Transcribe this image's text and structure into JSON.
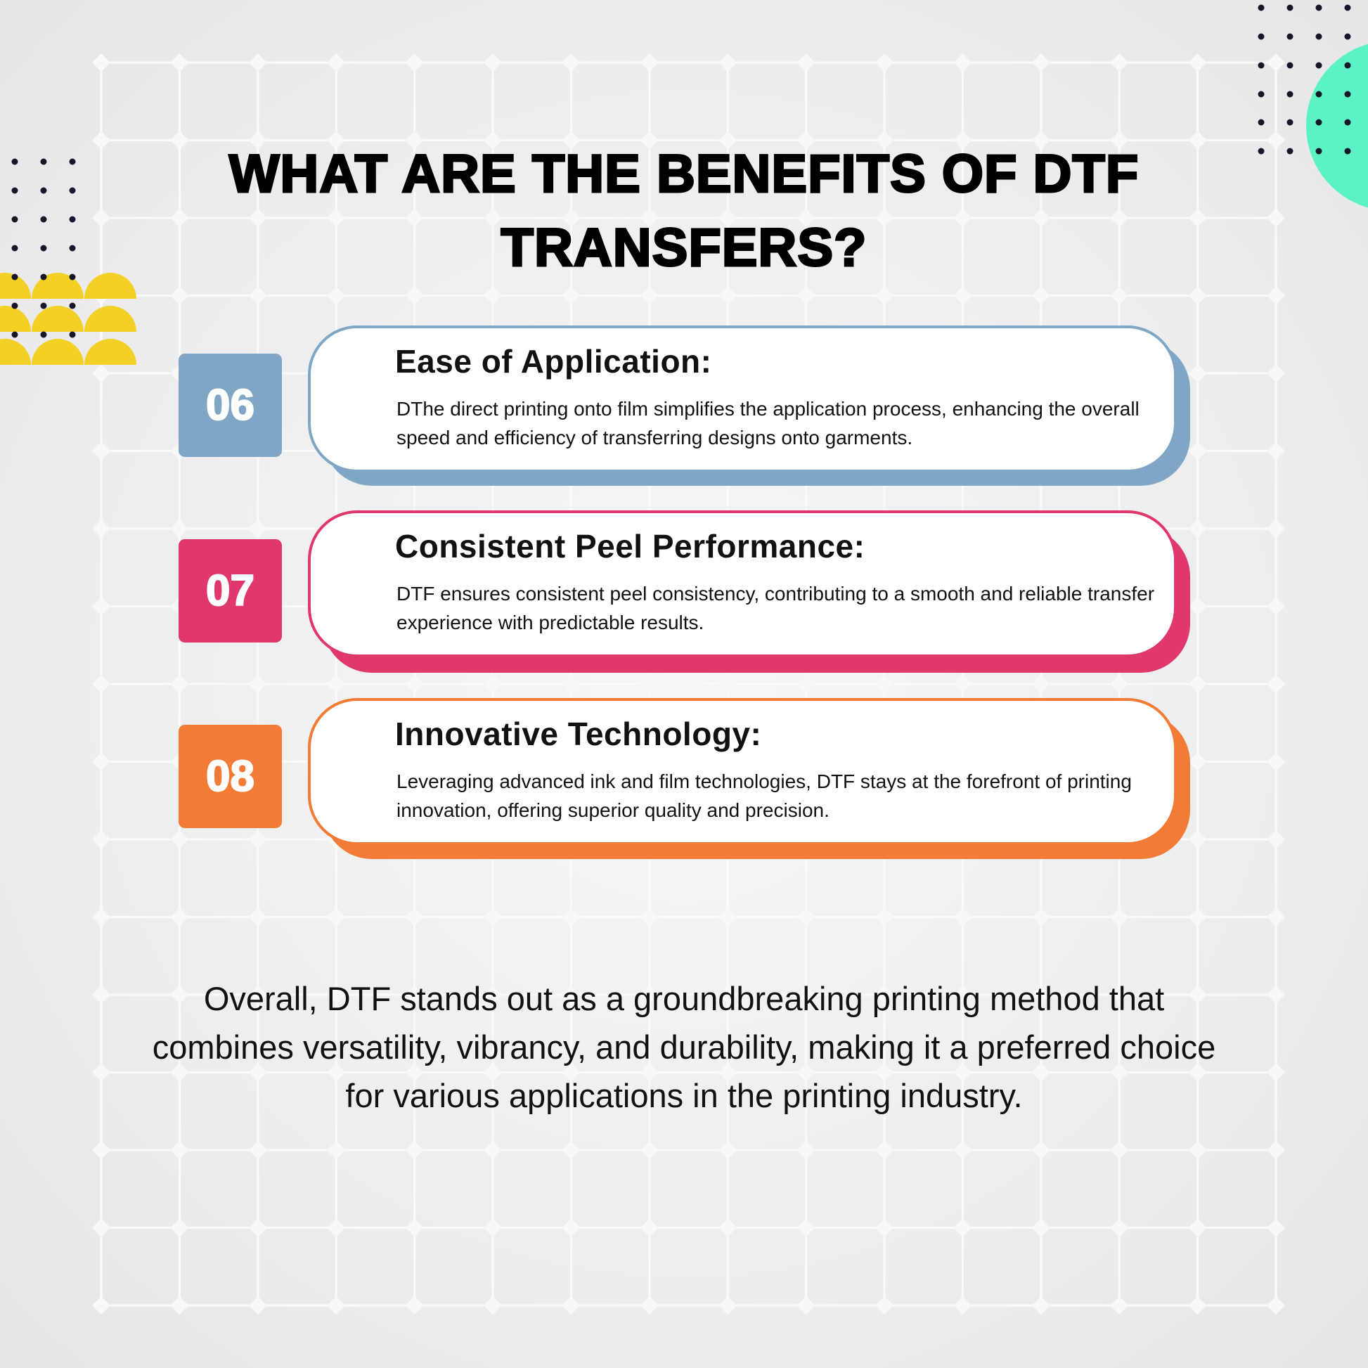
{
  "title": {
    "line1": "WHAT ARE THE BENEFITS OF DTF",
    "line2": "TRANSFERS?"
  },
  "benefits": [
    {
      "number": "06",
      "heading": "Ease of Application:",
      "text": "DThe direct printing onto film simplifies the application process, enhancing the overall speed and efficiency of transferring designs onto garments.",
      "color": "#7fa7c5"
    },
    {
      "number": "07",
      "heading": "Consistent Peel Performance:",
      "text": "DTF ensures consistent peel consistency, contributing to a smooth and reliable transfer experience with predictable results.",
      "color": "#e0386a"
    },
    {
      "number": "08",
      "heading": "Innovative Technology:",
      "text": "Leveraging advanced ink and film technologies, DTF stays at the forefront of printing innovation, offering superior quality and precision.",
      "color": "#f37b36"
    }
  ],
  "summary": "Overall, DTF stands out as a groundbreaking printing method that combines versatility, vibrancy, and durability, making it a preferred choice for various applications in the printing industry.",
  "colors": {
    "yellow": "#f2d026",
    "teal": "#5cf2c5",
    "dots": "#16162a"
  }
}
